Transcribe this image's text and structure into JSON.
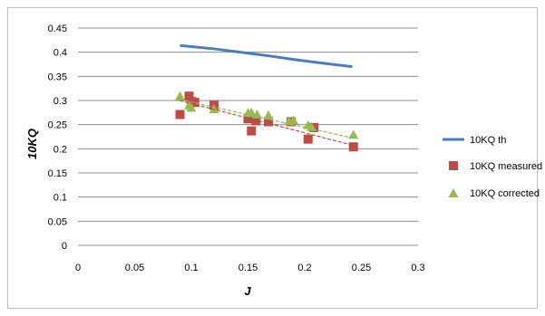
{
  "chart_data": {
    "type": "scatter",
    "title": "",
    "xlabel": "J",
    "ylabel": "10KQ",
    "xlim": [
      0,
      0.3
    ],
    "ylim": [
      0,
      0.45
    ],
    "x_ticks": [
      0,
      0.05,
      0.1,
      0.15,
      0.2,
      0.25,
      0.3
    ],
    "y_ticks": [
      0,
      0.05,
      0.1,
      0.15,
      0.2,
      0.25,
      0.3,
      0.35,
      0.4,
      0.45
    ],
    "grid": "horizontal",
    "legend_position": "right",
    "series": [
      {
        "name": "10KQ th",
        "kind": "line",
        "color": "#4a7ebb",
        "points": [
          [
            0.09,
            0.414
          ],
          [
            0.12,
            0.407
          ],
          [
            0.15,
            0.398
          ],
          [
            0.17,
            0.392
          ],
          [
            0.19,
            0.385
          ],
          [
            0.21,
            0.379
          ],
          [
            0.242,
            0.37
          ]
        ]
      },
      {
        "name": "10KQ measured",
        "kind": "scatter",
        "marker": "square",
        "color": "#be4b48",
        "points": [
          [
            0.09,
            0.271
          ],
          [
            0.098,
            0.309
          ],
          [
            0.1,
            0.298
          ],
          [
            0.103,
            0.296
          ],
          [
            0.12,
            0.29
          ],
          [
            0.15,
            0.262
          ],
          [
            0.153,
            0.237
          ],
          [
            0.157,
            0.258
          ],
          [
            0.168,
            0.256
          ],
          [
            0.188,
            0.256
          ],
          [
            0.203,
            0.22
          ],
          [
            0.208,
            0.244
          ],
          [
            0.243,
            0.204
          ]
        ],
        "trend": [
          [
            0.09,
            0.3
          ],
          [
            0.243,
            0.207
          ]
        ]
      },
      {
        "name": "10KQ corrected",
        "kind": "scatter",
        "marker": "triangle",
        "color": "#98b954",
        "points": [
          [
            0.09,
            0.31
          ],
          [
            0.098,
            0.291
          ],
          [
            0.1,
            0.286
          ],
          [
            0.12,
            0.283
          ],
          [
            0.15,
            0.275
          ],
          [
            0.153,
            0.276
          ],
          [
            0.158,
            0.272
          ],
          [
            0.168,
            0.27
          ],
          [
            0.186,
            0.258
          ],
          [
            0.19,
            0.26
          ],
          [
            0.203,
            0.25
          ],
          [
            0.206,
            0.246
          ],
          [
            0.243,
            0.23
          ]
        ],
        "trend": [
          [
            0.09,
            0.302
          ],
          [
            0.243,
            0.222
          ]
        ]
      }
    ]
  }
}
